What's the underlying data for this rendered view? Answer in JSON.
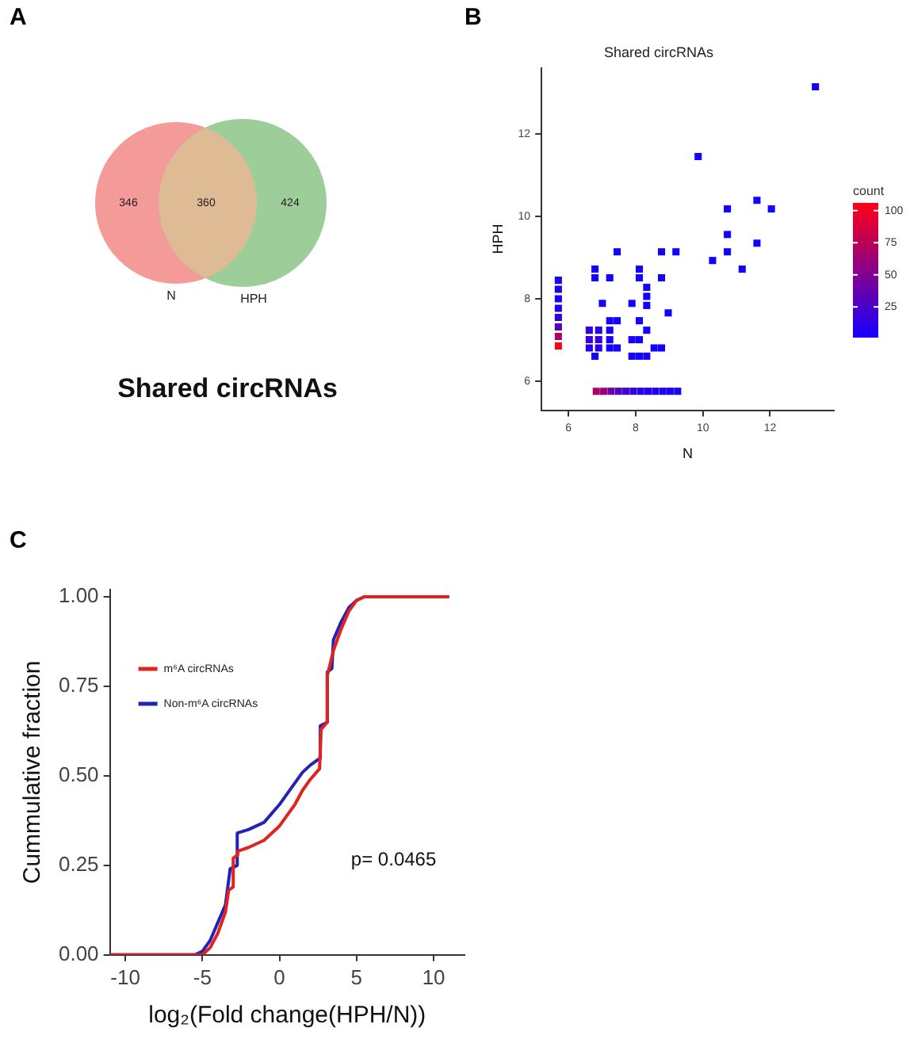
{
  "chart_data": [
    {
      "type": "other",
      "title": "Shared circRNAs",
      "categories": [
        "N",
        null,
        "HPH"
      ],
      "values": [
        346,
        360,
        424
      ],
      "colors": [
        "#f49a98",
        "#dfbb95",
        "#9dcd98"
      ],
      "data_labels": true,
      "annotations": [
        "A"
      ]
    },
    {
      "type": "scatter",
      "title": "Shared circRNAs",
      "xlabel": "N",
      "ylabel": "HPH",
      "clabel": "count",
      "marker": "square",
      "annotations": [
        "B"
      ],
      "xlim": [
        5.2,
        13.9
      ],
      "ylim": [
        5.3,
        13.6
      ],
      "xticks": [
        6,
        8,
        10,
        12
      ],
      "yticks": [
        6,
        8,
        10,
        12
      ],
      "clim": [
        1,
        106
      ],
      "cticks": [
        25,
        50,
        75,
        100
      ],
      "series": [
        {
          "x": [
            13.35,
            9.86,
            11.61,
            10.73,
            12.04,
            10.73,
            11.61,
            10.73,
            10.29,
            11.17,
            7.45,
            8.77,
            9.2,
            6.79,
            6.79,
            7.23,
            8.11,
            8.11,
            8.77,
            8.33,
            8.33,
            8.33,
            7.01,
            7.89,
            8.97,
            8.11,
            8.33,
            6.62,
            6.9,
            6.62,
            6.9,
            6.62,
            6.9,
            7.23,
            7.45,
            7.23,
            7.23,
            7.23,
            7.45,
            6.79,
            7.89,
            8.11,
            7.89,
            8.11,
            8.33,
            8.55,
            8.77,
            5.7,
            5.7,
            5.7,
            5.7,
            5.7,
            5.7,
            5.7,
            5.7,
            6.83,
            7.05,
            7.27,
            7.49,
            7.71,
            7.93,
            8.15,
            8.37,
            8.59,
            8.81,
            9.03,
            9.25
          ],
          "values": [
            13.14,
            11.45,
            10.39,
            10.18,
            10.18,
            9.56,
            9.35,
            9.14,
            8.93,
            8.72,
            9.14,
            9.14,
            9.14,
            8.72,
            8.51,
            8.51,
            8.72,
            8.51,
            8.51,
            8.28,
            8.06,
            7.84,
            7.89,
            7.89,
            7.66,
            7.47,
            7.24,
            7.24,
            7.24,
            7.01,
            7.01,
            6.81,
            6.81,
            7.47,
            7.47,
            7.24,
            7.01,
            6.81,
            6.81,
            6.61,
            7.01,
            7.01,
            6.61,
            6.61,
            6.61,
            6.81,
            6.81,
            8.45,
            8.23,
            8.0,
            7.77,
            7.55,
            7.32,
            7.09,
            6.86,
            5.76,
            5.76,
            5.76,
            5.76,
            5.76,
            5.76,
            5.76,
            5.76,
            5.76,
            5.76,
            5.76,
            5.76
          ],
          "cvalues": [
            1,
            1,
            1,
            1,
            1,
            1,
            1,
            1,
            1,
            1,
            1,
            1,
            1,
            1,
            1,
            1,
            1,
            1,
            1,
            1,
            1,
            1,
            1,
            1,
            1,
            1,
            1,
            15,
            12,
            18,
            15,
            10,
            8,
            2,
            1,
            3,
            2,
            2,
            1,
            1,
            2,
            1,
            1,
            1,
            1,
            1,
            1,
            3,
            4,
            5,
            8,
            15,
            30,
            70,
            105,
            70,
            60,
            40,
            30,
            20,
            15,
            10,
            8,
            6,
            5,
            4,
            3
          ]
        }
      ]
    },
    {
      "type": "line",
      "xlabel": "log₂(Fold change(HPH/N))",
      "ylabel": "Cummulative fraction",
      "legend": "top left",
      "line_style": "solid",
      "annotations": [
        "C",
        "p= 0.0465"
      ],
      "xlim": [
        -11,
        12
      ],
      "ylim": [
        0,
        1.02
      ],
      "xticks": [
        -10,
        -5,
        0,
        5,
        10
      ],
      "yticks": [
        {
          "value": 0,
          "label": "0.00"
        },
        {
          "value": 0.25,
          "label": "0.25"
        },
        {
          "value": 0.5,
          "label": "0.50"
        },
        {
          "value": 0.75,
          "label": "0.75"
        },
        {
          "value": 1,
          "label": "1.00"
        }
      ],
      "series": [
        {
          "name": "m⁶A circRNAs",
          "color": "#e0231d",
          "x": [
            -11,
            -5,
            -4.5,
            -4,
            -3.5,
            -3.3,
            -3,
            -3,
            -2.7,
            -2.7,
            -2,
            -1,
            0,
            1,
            1.5,
            2,
            2.6,
            2.7,
            3.1,
            3.1,
            3.5,
            4,
            4.5,
            5,
            5.5,
            11
          ],
          "values": [
            0,
            0,
            0.02,
            0.06,
            0.12,
            0.18,
            0.19,
            0.27,
            0.28,
            0.29,
            0.3,
            0.32,
            0.36,
            0.42,
            0.46,
            0.49,
            0.52,
            0.63,
            0.65,
            0.78,
            0.85,
            0.91,
            0.96,
            0.99,
            1,
            1
          ]
        },
        {
          "name": "Non-m⁶A circRNAs",
          "color": "#2222b8",
          "x": [
            -11,
            -5.5,
            -5,
            -4.5,
            -4,
            -3.5,
            -3.2,
            -2.74,
            -2.74,
            -2,
            -1,
            0,
            1,
            1.5,
            2,
            2.65,
            2.65,
            3.1,
            3.1,
            3.4,
            3.5,
            4,
            4.5,
            5,
            5.5,
            11
          ],
          "values": [
            0,
            0,
            0.01,
            0.04,
            0.09,
            0.14,
            0.24,
            0.25,
            0.34,
            0.35,
            0.37,
            0.42,
            0.48,
            0.51,
            0.53,
            0.55,
            0.64,
            0.65,
            0.79,
            0.8,
            0.88,
            0.93,
            0.97,
            0.99,
            1,
            1
          ]
        }
      ]
    }
  ]
}
